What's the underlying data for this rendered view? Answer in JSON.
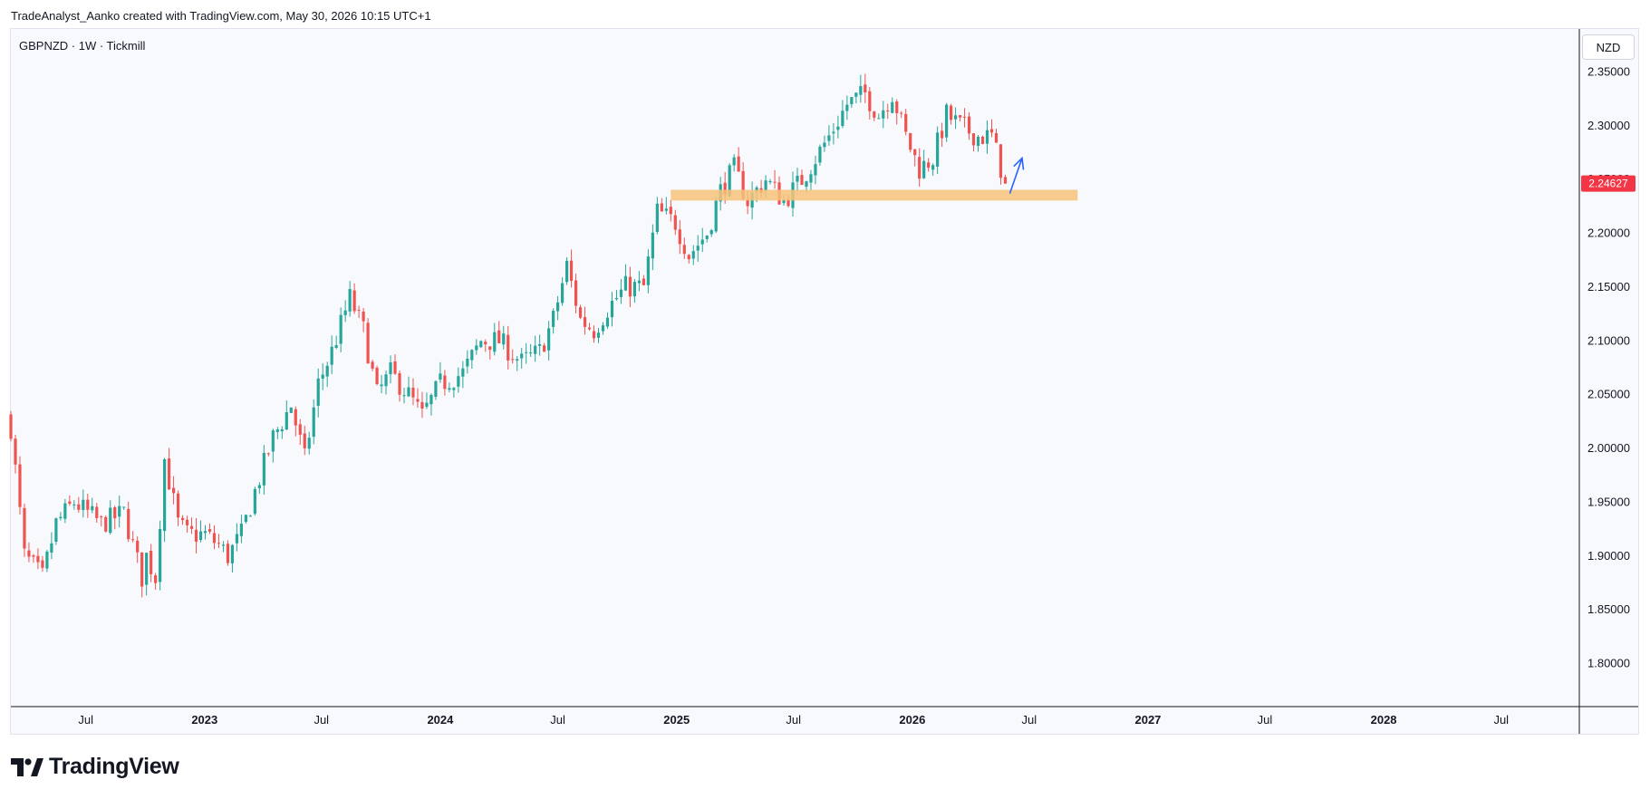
{
  "header": {
    "caption": "TradeAnalyst_Aanko created with TradingView.com, May 30, 2026 10:15 UTC+1"
  },
  "chart_header": {
    "symbol_line": "GBPNZD · 1W · Tickmill",
    "currency": "NZD"
  },
  "footer": {
    "logo_text": "TradingView"
  },
  "colors": {
    "up": "#26a69a",
    "down": "#ef5350",
    "zone": "#f7c27a",
    "arrow": "#2962ff",
    "price_tag": "#f23645"
  },
  "chart_data": {
    "type": "candlestick",
    "symbol": "GBPNZD",
    "interval": "1W",
    "broker": "Tickmill",
    "last_price": 2.24627,
    "last_price_label": "2.24627",
    "ylim": [
      1.76,
      2.39
    ],
    "y_ticks": [
      {
        "value": 1.8,
        "label": "1.80000"
      },
      {
        "value": 1.85,
        "label": "1.85000"
      },
      {
        "value": 1.9,
        "label": "1.90000"
      },
      {
        "value": 1.95,
        "label": "1.95000"
      },
      {
        "value": 2.0,
        "label": "2.00000"
      },
      {
        "value": 2.05,
        "label": "2.05000"
      },
      {
        "value": 2.1,
        "label": "2.10000"
      },
      {
        "value": 2.15,
        "label": "2.15000"
      },
      {
        "value": 2.2,
        "label": "2.20000"
      },
      {
        "value": 2.25,
        "label": "2.25000"
      },
      {
        "value": 2.3,
        "label": "2.30000"
      },
      {
        "value": 2.35,
        "label": "2.35000"
      }
    ],
    "xlim": [
      "2022-03-07",
      "2028-10-30"
    ],
    "x_ticks": [
      {
        "date": "2022-07-01",
        "label": "Jul",
        "bold": false
      },
      {
        "date": "2023-01-01",
        "label": "2023",
        "bold": true
      },
      {
        "date": "2023-07-01",
        "label": "Jul",
        "bold": false
      },
      {
        "date": "2024-01-01",
        "label": "2024",
        "bold": true
      },
      {
        "date": "2024-07-01",
        "label": "Jul",
        "bold": false
      },
      {
        "date": "2025-01-01",
        "label": "2025",
        "bold": true
      },
      {
        "date": "2025-07-01",
        "label": "Jul",
        "bold": false
      },
      {
        "date": "2026-01-01",
        "label": "2026",
        "bold": true
      },
      {
        "date": "2026-07-01",
        "label": "Jul",
        "bold": false
      },
      {
        "date": "2027-01-01",
        "label": "2027",
        "bold": true
      },
      {
        "date": "2027-07-01",
        "label": "Jul",
        "bold": false
      },
      {
        "date": "2028-01-01",
        "label": "2028",
        "bold": true
      },
      {
        "date": "2028-07-01",
        "label": "Jul",
        "bold": false
      }
    ],
    "close_path": [
      [
        "2022-03-07",
        2.02
      ],
      [
        "2022-03-28",
        1.9
      ],
      [
        "2022-04-25",
        1.88
      ],
      [
        "2022-05-16",
        1.93
      ],
      [
        "2022-06-13",
        1.95
      ],
      [
        "2022-07-25",
        1.93
      ],
      [
        "2022-08-29",
        1.94
      ],
      [
        "2022-09-26",
        1.88
      ],
      [
        "2022-10-03",
        1.9
      ],
      [
        "2022-10-17",
        1.88
      ],
      [
        "2022-10-31",
        1.99
      ],
      [
        "2022-11-21",
        1.93
      ],
      [
        "2022-12-05",
        1.92
      ],
      [
        "2023-01-02",
        1.92
      ],
      [
        "2023-01-23",
        1.91
      ],
      [
        "2023-02-06",
        1.9
      ],
      [
        "2023-02-27",
        1.92
      ],
      [
        "2023-03-20",
        1.96
      ],
      [
        "2023-04-17",
        2.01
      ],
      [
        "2023-05-15",
        2.04
      ],
      [
        "2023-06-05",
        1.99
      ],
      [
        "2023-06-26",
        2.06
      ],
      [
        "2023-07-17",
        2.09
      ],
      [
        "2023-08-14",
        2.14
      ],
      [
        "2023-09-04",
        2.11
      ],
      [
        "2023-09-25",
        2.05
      ],
      [
        "2023-10-16",
        2.07
      ],
      [
        "2023-11-13",
        2.05
      ],
      [
        "2023-12-04",
        2.03
      ],
      [
        "2024-01-01",
        2.06
      ],
      [
        "2024-02-05",
        2.07
      ],
      [
        "2024-03-04",
        2.1
      ],
      [
        "2024-04-01",
        2.1
      ],
      [
        "2024-05-06",
        2.08
      ],
      [
        "2024-06-03",
        2.09
      ],
      [
        "2024-06-24",
        2.12
      ],
      [
        "2024-07-15",
        2.17
      ],
      [
        "2024-08-05",
        2.12
      ],
      [
        "2024-08-26",
        2.11
      ],
      [
        "2024-09-16",
        2.13
      ],
      [
        "2024-10-14",
        2.15
      ],
      [
        "2024-11-11",
        2.15
      ],
      [
        "2024-12-02",
        2.22
      ],
      [
        "2024-12-30",
        2.21
      ],
      [
        "2025-01-20",
        2.18
      ],
      [
        "2025-02-17",
        2.2
      ],
      [
        "2025-03-10",
        2.24
      ],
      [
        "2025-03-31",
        2.26
      ],
      [
        "2025-04-21",
        2.23
      ],
      [
        "2025-05-19",
        2.25
      ],
      [
        "2025-06-16",
        2.23
      ],
      [
        "2025-07-14",
        2.25
      ],
      [
        "2025-08-04",
        2.27
      ],
      [
        "2025-08-25",
        2.29
      ],
      [
        "2025-09-22",
        2.32
      ],
      [
        "2025-10-20",
        2.33
      ],
      [
        "2025-11-10",
        2.31
      ],
      [
        "2025-12-01",
        2.33
      ],
      [
        "2025-12-22",
        2.29
      ],
      [
        "2026-01-12",
        2.26
      ],
      [
        "2026-02-02",
        2.27
      ],
      [
        "2026-02-23",
        2.31
      ],
      [
        "2026-03-16",
        2.3
      ],
      [
        "2026-04-13",
        2.29
      ],
      [
        "2026-05-04",
        2.29
      ],
      [
        "2026-05-25",
        2.24627
      ]
    ],
    "annotations": {
      "support_zone": {
        "from": "2024-12-23",
        "to": "2026-09-14",
        "low": 2.2305,
        "high": 2.2405
      },
      "arrow": {
        "from_date": "2026-06-01",
        "from_price": 2.237,
        "to_date": "2026-06-20",
        "to_price": 2.27
      }
    }
  }
}
